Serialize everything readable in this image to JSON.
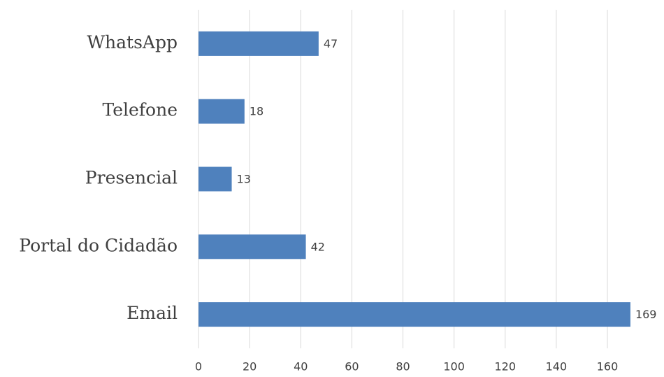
{
  "chart_data": {
    "type": "barh",
    "categories": [
      "WhatsApp",
      "Telefone",
      "Presencial",
      "Portal do Cidadão",
      "Email"
    ],
    "values": [
      47,
      18,
      13,
      42,
      169
    ],
    "color": "#4f81bd",
    "xlim": [
      0,
      170
    ],
    "xticks": [
      0,
      20,
      40,
      60,
      80,
      100,
      120,
      140,
      160
    ],
    "grid": true
  }
}
